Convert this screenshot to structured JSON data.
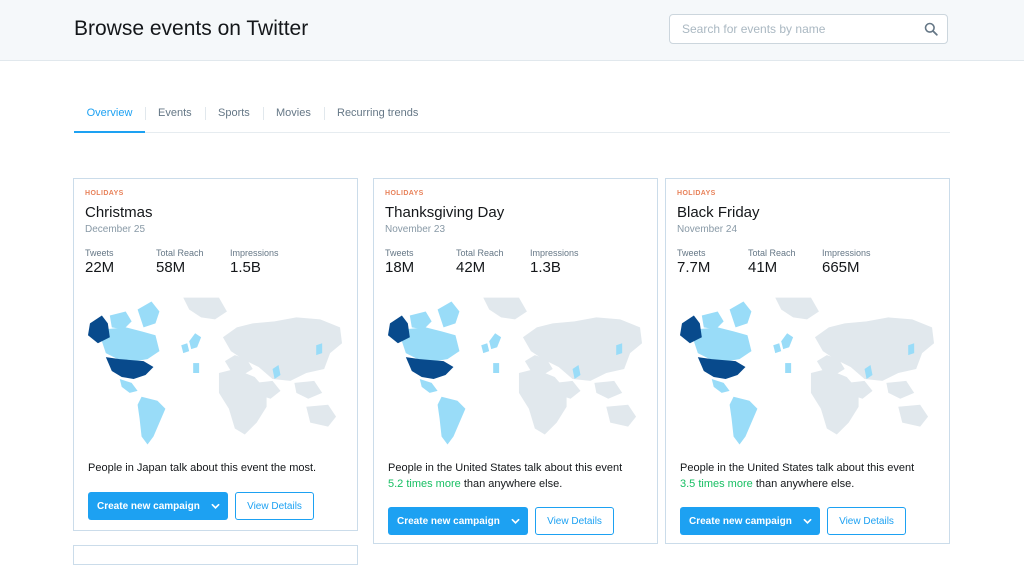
{
  "header": {
    "title": "Browse events on Twitter",
    "search": {
      "placeholder": "Search for events by name",
      "value": ""
    }
  },
  "tabs": [
    {
      "label": "Overview",
      "active": true
    },
    {
      "label": "Events"
    },
    {
      "label": "Sports"
    },
    {
      "label": "Movies"
    },
    {
      "label": "Recurring trends"
    }
  ],
  "colors": {
    "accent": "#1da1f2",
    "category": "#e8825a",
    "highlight": "#17bf63",
    "map_high": "#084a8c",
    "map_mid": "#99dcf8",
    "map_base": "#e1e8ed"
  },
  "stat_labels": {
    "tweets": "Tweets",
    "reach": "Total Reach",
    "impressions": "Impressions"
  },
  "cards": [
    {
      "category": "HOLIDAYS",
      "title": "Christmas",
      "date": "December 25",
      "tweets": "22M",
      "reach": "58M",
      "impressions": "1.5B",
      "insight_pre": "People in Japan talk about this event the most.",
      "insight_highlight": "",
      "insight_post": "",
      "primary_button": "Create new campaign",
      "secondary_button": "View Details"
    },
    {
      "category": "HOLIDAYS",
      "title": "Thanksgiving Day",
      "date": "November 23",
      "tweets": "18M",
      "reach": "42M",
      "impressions": "1.3B",
      "insight_pre": "People in the United States talk about this event",
      "insight_highlight": "5.2 times more",
      "insight_post": "than anywhere else.",
      "primary_button": "Create new campaign",
      "secondary_button": "View Details"
    },
    {
      "category": "HOLIDAYS",
      "title": "Black Friday",
      "date": "November 24",
      "tweets": "7.7M",
      "reach": "41M",
      "impressions": "665M",
      "insight_pre": "People in the United States talk about this event",
      "insight_highlight": "3.5 times more",
      "insight_post": "than anywhere else.",
      "primary_button": "Create new campaign",
      "secondary_button": "View Details"
    }
  ]
}
